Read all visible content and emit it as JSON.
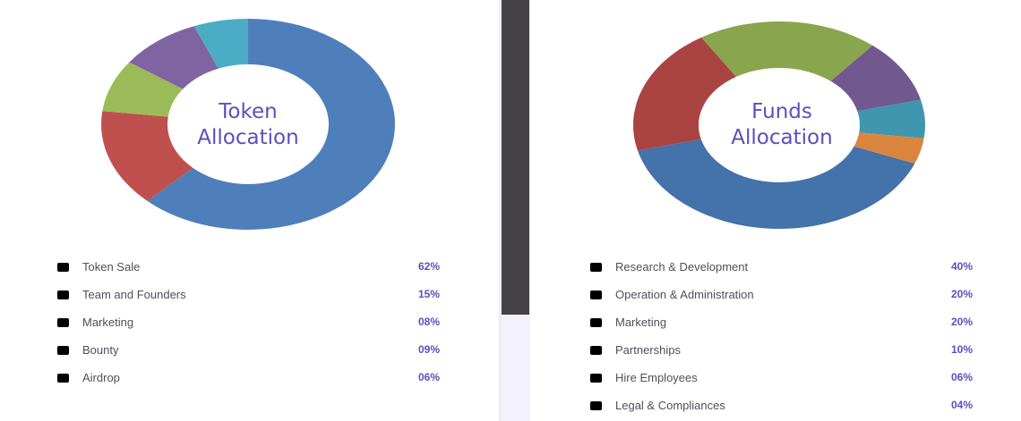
{
  "chart_data": [
    {
      "type": "pie",
      "title": "Token Allocation",
      "title_lines": [
        "Token",
        "Allocation"
      ],
      "categories": [
        "Token Sale",
        "Team and Founders",
        "Marketing",
        "Bounty",
        "Airdrop"
      ],
      "values": [
        62,
        15,
        8,
        9,
        6
      ],
      "value_labels": [
        "62%",
        "15%",
        "08%",
        "09%",
        "06%"
      ],
      "slice_colors": [
        "#4e7fbb",
        "#c0504d",
        "#9bbb59",
        "#8064a2",
        "#4bacc6"
      ],
      "legend": "bottom"
    },
    {
      "type": "pie",
      "title": "Funds Allocation",
      "title_lines": [
        "Funds",
        "Allocation"
      ],
      "categories": [
        "Research & Development",
        "Operation & Administration",
        "Marketing",
        "Partnerships",
        "Hire Employees",
        "Legal & Compliances"
      ],
      "values": [
        40,
        20,
        20,
        10,
        6,
        4
      ],
      "value_labels": [
        "40%",
        "20%",
        "20%",
        "10%",
        "06%",
        "04%"
      ],
      "slice_colors": [
        "#4472aa",
        "#aa4442",
        "#89a54e",
        "#71588f",
        "#3f96ae",
        "#db843d"
      ],
      "legend": "bottom"
    }
  ]
}
